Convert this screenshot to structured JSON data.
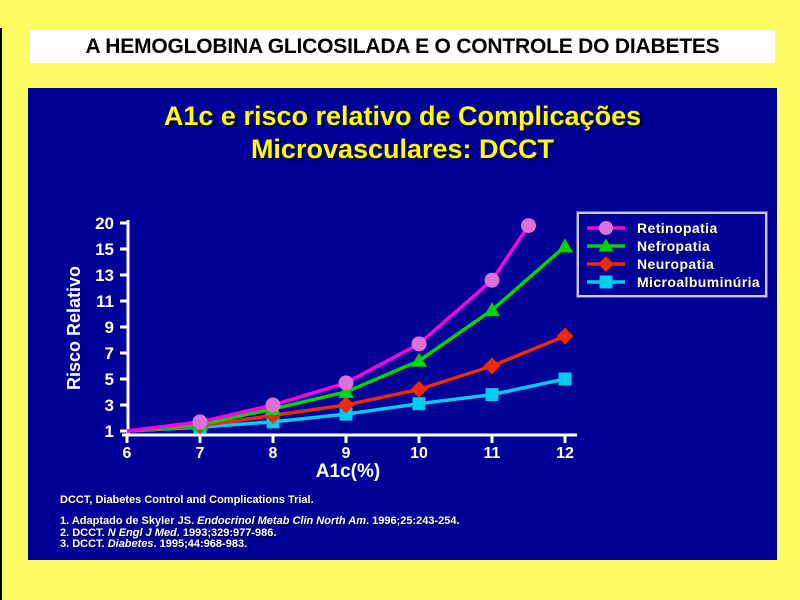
{
  "slide": {
    "banner_title": "A HEMOGLOBINA GLICOSILADA E O CONTROLE DO DIABETES",
    "title_line1": "A1c e risco relativo de Complicações",
    "title_line2": "Microvasculares: DCCT",
    "footnote": "DCCT, Diabetes Control and Complications Trial.",
    "references": [
      {
        "prefix": "1. Adaptado de Skyler JS. ",
        "italic": "Endocrinol Metab Clin North Am",
        "suffix": ". 1996;25:243-254."
      },
      {
        "prefix": "2. DCCT. ",
        "italic": "N Engl J Med",
        "suffix": ". 1993;329:977-986."
      },
      {
        "prefix": "3. DCCT. ",
        "italic": "Diabetes",
        "suffix": ". 1995;44:968-983."
      }
    ],
    "colors": {
      "background": "#FCFC63",
      "panel": "#000099",
      "banner_bg": "#FFFFFF",
      "banner_text": "#000000",
      "title_text": "#FFFF00",
      "axis": "#FFFFFF",
      "legend_border": "#C9C9E8"
    }
  },
  "chart_data": {
    "type": "line",
    "title": "A1c e risco relativo de Complicações Microvasculares: DCCT",
    "xlabel": "A1c(%)",
    "ylabel": "Risco Relativo",
    "x_ticks": [
      6,
      7,
      8,
      9,
      10,
      11,
      12
    ],
    "y_ticks": [
      1,
      3,
      5,
      7,
      9,
      11,
      13,
      15,
      20
    ],
    "y_scale": "ticks equally spaced (non-linear above 15)",
    "grid": false,
    "legend_position": "top-right",
    "series": [
      {
        "name": "Retinopatia",
        "marker": "circle",
        "line_color": "#FF00DC",
        "marker_color": "#DD6FDD",
        "x": [
          6,
          7,
          8,
          9,
          10,
          11,
          11.5
        ],
        "y": [
          1,
          1.7,
          3.0,
          4.7,
          7.7,
          12.6,
          19.5
        ]
      },
      {
        "name": "Nefropatia",
        "marker": "triangle",
        "line_color": "#00D500",
        "marker_color": "#00D500",
        "x": [
          6,
          7,
          8,
          9,
          10,
          11,
          12
        ],
        "y": [
          1,
          1.5,
          2.7,
          4.0,
          6.4,
          10.3,
          15.5
        ]
      },
      {
        "name": "Neuropatia",
        "marker": "diamond",
        "line_color": "#EE2B00",
        "marker_color": "#EE2B00",
        "x": [
          6,
          7,
          8,
          9,
          10,
          11,
          12
        ],
        "y": [
          1,
          1.4,
          2.2,
          3.0,
          4.2,
          6.0,
          8.3
        ]
      },
      {
        "name": "Microalbuminúria",
        "marker": "square",
        "line_color": "#00CCF2",
        "marker_color": "#00CCF2",
        "x": [
          6,
          7,
          8,
          9,
          10,
          11,
          12
        ],
        "y": [
          1,
          1.3,
          1.7,
          2.3,
          3.1,
          3.8,
          5.0
        ]
      }
    ]
  }
}
